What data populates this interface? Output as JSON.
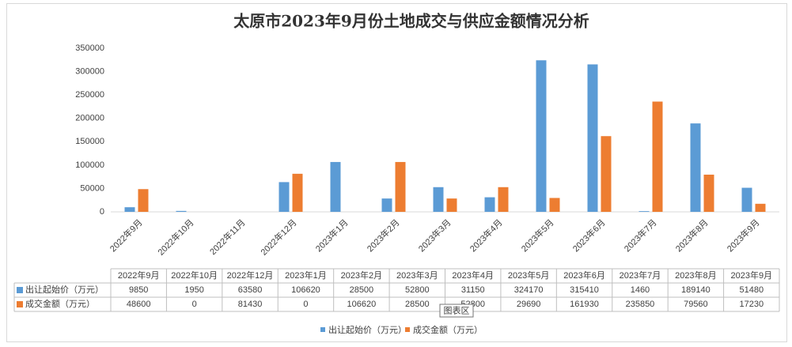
{
  "chart_data": {
    "type": "bar",
    "title": "太原市2023年9月份土地成交与供应金额情况分析",
    "categories": [
      "2022年9月",
      "2022年10月",
      "2022年11月",
      "2022年12月",
      "2023年1月",
      "2023年2月",
      "2023年3月",
      "2023年4月",
      "2023年5月",
      "2023年6月",
      "2023年7月",
      "2023年8月",
      "2023年9月"
    ],
    "series": [
      {
        "name": "出让起始价（万元）",
        "color": "#5b9bd5",
        "values": [
          9850,
          1950,
          null,
          63580,
          106620,
          28500,
          52800,
          31150,
          324170,
          315410,
          1460,
          189140,
          51480
        ]
      },
      {
        "name": "成交金额（万元）",
        "color": "#ed7d31",
        "values": [
          48600,
          0,
          null,
          81430,
          0,
          106620,
          28500,
          52800,
          29690,
          161930,
          235850,
          79560,
          17230
        ]
      }
    ],
    "ylim": [
      0,
      350000
    ],
    "yticks": [
      0,
      50000,
      100000,
      150000,
      200000,
      250000,
      300000,
      350000
    ],
    "grid": false,
    "legend": "bottom",
    "tooltip": "图表区"
  }
}
